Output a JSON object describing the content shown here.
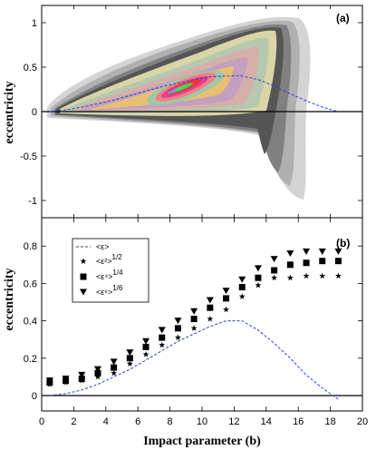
{
  "chart_data": [
    {
      "panel_label": "(a)",
      "type": "heatmap",
      "ylabel": "eccentricity",
      "xlim": [
        0,
        20
      ],
      "ylim": [
        -1.2,
        1.2
      ],
      "yticks": [
        -1,
        -0.5,
        0,
        0.5,
        1
      ],
      "yticklabels": [
        "-1",
        "-0.5",
        "0",
        "0.5",
        "1"
      ],
      "mean_curve": {
        "x": [
          0.5,
          1.5,
          2.5,
          3.5,
          4.5,
          5.5,
          6.5,
          7.5,
          8.5,
          9.5,
          10.5,
          11.5,
          12.5,
          13.5,
          14.5,
          15.5,
          16.5,
          17.5,
          18.5
        ],
        "y": [
          0.0,
          0.02,
          0.05,
          0.09,
          0.13,
          0.18,
          0.23,
          0.28,
          0.32,
          0.36,
          0.39,
          0.4,
          0.4,
          0.36,
          0.29,
          0.2,
          0.12,
          0.05,
          0.0
        ]
      },
      "colors": [
        "#d4d4d4",
        "#b0b0b0",
        "#808080",
        "#555555",
        "#d9d5a6",
        "#b6c8b0",
        "#d5b0a8",
        "#c3a0c0",
        "#e8c070",
        "#9ec8a8",
        "#f08080",
        "#e040a0",
        "#ff3030",
        "#30e060",
        "#60a0ff"
      ]
    },
    {
      "panel_label": "(b)",
      "type": "scatter",
      "ylabel": "eccentricity",
      "xlabel": "Impact parameter (b)",
      "xlim": [
        0,
        20
      ],
      "ylim": [
        -0.1,
        0.9
      ],
      "xticks": [
        0,
        2,
        4,
        6,
        8,
        10,
        12,
        14,
        16,
        18,
        20
      ],
      "xticklabels": [
        "0",
        "2",
        "4",
        "6",
        "8",
        "10",
        "12",
        "14",
        "16",
        "18",
        "20"
      ],
      "yticks": [
        0,
        0.2,
        0.4,
        0.6,
        0.8
      ],
      "yticklabels": [
        "0",
        "0.2",
        "0.4",
        "0.6",
        "0.8"
      ],
      "x": [
        0.5,
        1.5,
        2.5,
        3.5,
        4.5,
        5.5,
        6.5,
        7.5,
        8.5,
        9.5,
        10.5,
        11.5,
        12.5,
        13.5,
        14.5,
        15.5,
        16.5,
        17.5,
        18.5
      ],
      "series": [
        {
          "name": "<ε>",
          "marker": "dashed-line",
          "color": "#2a3fd6",
          "values": [
            0.0,
            0.01,
            0.03,
            0.06,
            0.1,
            0.14,
            0.19,
            0.24,
            0.29,
            0.33,
            0.37,
            0.4,
            0.4,
            0.35,
            0.28,
            0.2,
            0.11,
            0.04,
            -0.02
          ]
        },
        {
          "name": "<ε²>",
          "superscript": "1/2",
          "marker": "star",
          "color": "#000000",
          "values": [
            0.06,
            0.07,
            0.08,
            0.1,
            0.12,
            0.17,
            0.22,
            0.27,
            0.31,
            0.36,
            0.41,
            0.46,
            0.53,
            0.59,
            0.63,
            0.63,
            0.64,
            0.64,
            0.64
          ]
        },
        {
          "name": "<ε⁴>",
          "superscript": "1/4",
          "marker": "square",
          "color": "#000000",
          "values": [
            0.07,
            0.08,
            0.09,
            0.12,
            0.15,
            0.2,
            0.26,
            0.31,
            0.36,
            0.41,
            0.47,
            0.52,
            0.58,
            0.63,
            0.67,
            0.7,
            0.71,
            0.72,
            0.72
          ]
        },
        {
          "name": "<ε⁶>",
          "superscript": "1/6",
          "marker": "triangle-down",
          "color": "#000000",
          "values": [
            0.08,
            0.09,
            0.11,
            0.14,
            0.18,
            0.23,
            0.29,
            0.35,
            0.4,
            0.45,
            0.51,
            0.56,
            0.62,
            0.68,
            0.73,
            0.76,
            0.77,
            0.77,
            0.77
          ]
        }
      ],
      "legend": "top-left"
    }
  ]
}
